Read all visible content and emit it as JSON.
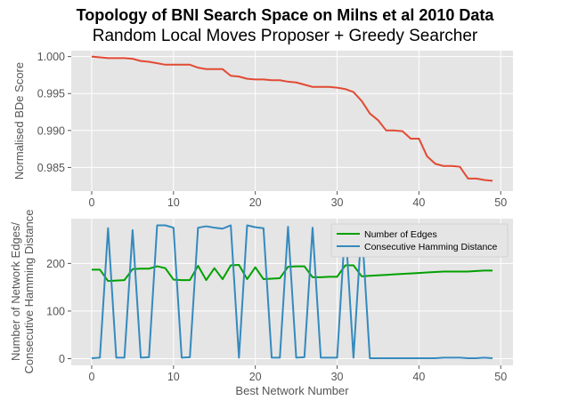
{
  "figure": {
    "title": "Topology of BNI Search Space on Milns et al 2010 Data",
    "subtitle": "Random Local Moves Proposer + Greedy Searcher"
  },
  "chart_data": [
    {
      "type": "line",
      "ylabel": "Normalised BDe Score",
      "xlabel": "",
      "xlim": [
        -2.5,
        51.5
      ],
      "ylim": [
        0.9818,
        1.0008
      ],
      "xticks": [
        0,
        10,
        20,
        30,
        40,
        50
      ],
      "xtick_labels": [
        "0",
        "10",
        "20",
        "30",
        "40",
        "50"
      ],
      "yticks": [
        0.985,
        0.99,
        0.995,
        1.0
      ],
      "ytick_labels": [
        "0.985",
        "0.990",
        "0.995",
        "1.000"
      ],
      "grid": true,
      "series": [
        {
          "color": "#E24A33",
          "x": [
            0,
            1,
            2,
            3,
            4,
            5,
            6,
            7,
            8,
            9,
            10,
            11,
            12,
            13,
            14,
            15,
            16,
            17,
            18,
            19,
            20,
            21,
            22,
            23,
            24,
            25,
            26,
            27,
            28,
            29,
            30,
            31,
            32,
            33,
            34,
            35,
            36,
            37,
            38,
            39,
            40,
            41,
            42,
            43,
            44,
            45,
            46,
            47,
            48,
            49
          ],
          "values": [
            1.0,
            0.9999,
            0.9998,
            0.9998,
            0.9998,
            0.9997,
            0.9994,
            0.9993,
            0.9991,
            0.9989,
            0.9989,
            0.9989,
            0.9989,
            0.9985,
            0.9983,
            0.9983,
            0.9983,
            0.9974,
            0.9973,
            0.997,
            0.9969,
            0.9969,
            0.9968,
            0.9968,
            0.9966,
            0.9965,
            0.9962,
            0.9959,
            0.9959,
            0.9959,
            0.9958,
            0.9956,
            0.9952,
            0.994,
            0.9923,
            0.9914,
            0.99,
            0.99,
            0.9899,
            0.9889,
            0.9889,
            0.9865,
            0.9855,
            0.9852,
            0.9852,
            0.9851,
            0.9835,
            0.9835,
            0.9833,
            0.9832
          ]
        }
      ]
    },
    {
      "type": "line",
      "ylabel_line1": "Number of Network Edges/",
      "ylabel_line2": "Consecutive Hamming Distance",
      "xlabel": "Best Network Number",
      "xlim": [
        -2.5,
        51.5
      ],
      "ylim": [
        -14,
        294
      ],
      "xticks": [
        0,
        10,
        20,
        30,
        40,
        50
      ],
      "xtick_labels": [
        "0",
        "10",
        "20",
        "30",
        "40",
        "50"
      ],
      "yticks": [
        0,
        100,
        200
      ],
      "ytick_labels": [
        "0",
        "100",
        "200"
      ],
      "grid": true,
      "legend": "top-right",
      "series": [
        {
          "name": "Number of Edges",
          "color": "#00A000",
          "x": [
            0,
            1,
            2,
            3,
            4,
            5,
            6,
            7,
            8,
            9,
            10,
            11,
            12,
            13,
            14,
            15,
            16,
            17,
            18,
            19,
            20,
            21,
            22,
            23,
            24,
            25,
            26,
            27,
            28,
            29,
            30,
            31,
            32,
            33,
            34,
            35,
            36,
            37,
            38,
            39,
            40,
            41,
            42,
            43,
            44,
            45,
            46,
            47,
            48,
            49
          ],
          "values": [
            187,
            187,
            163,
            164,
            165,
            188,
            189,
            189,
            194,
            190,
            166,
            165,
            165,
            195,
            165,
            190,
            167,
            196,
            197,
            167,
            192,
            167,
            168,
            169,
            193,
            194,
            194,
            171,
            171,
            172,
            172,
            196,
            196,
            173,
            174,
            175,
            176,
            177,
            178,
            179,
            180,
            181,
            182,
            183,
            183,
            183,
            183,
            184,
            185,
            185
          ]
        },
        {
          "name": "Consecutive Hamming Distance",
          "color": "#348ABD",
          "x": [
            0,
            1,
            2,
            3,
            4,
            5,
            6,
            7,
            8,
            9,
            10,
            11,
            12,
            13,
            14,
            15,
            16,
            17,
            18,
            19,
            20,
            21,
            22,
            23,
            24,
            25,
            26,
            27,
            28,
            29,
            30,
            31,
            32,
            33,
            34,
            35,
            36,
            37,
            38,
            39,
            40,
            41,
            42,
            43,
            44,
            45,
            46,
            47,
            48,
            49
          ],
          "values": [
            1,
            2,
            274,
            2,
            2,
            270,
            2,
            3,
            280,
            280,
            275,
            2,
            3,
            275,
            278,
            275,
            273,
            280,
            2,
            280,
            276,
            274,
            2,
            2,
            277,
            2,
            3,
            275,
            2,
            2,
            2,
            280,
            2,
            280,
            1,
            1,
            1,
            1,
            1,
            1,
            1,
            1,
            1,
            2,
            2,
            2,
            1,
            1,
            2,
            1
          ]
        }
      ]
    }
  ]
}
